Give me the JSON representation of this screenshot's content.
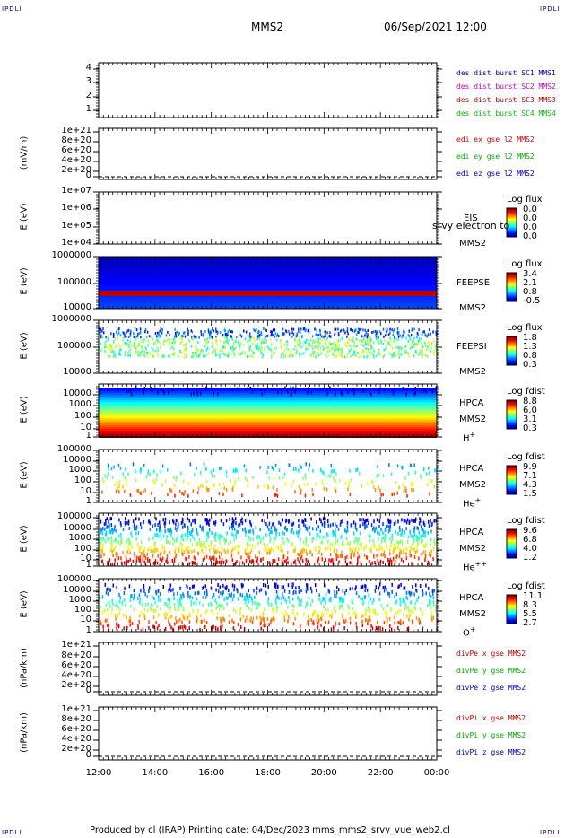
{
  "header": {
    "corner_left_top": "IPDLI",
    "corner_right_top": "IPDLI",
    "corner_left_bottom": "IPDLI",
    "corner_right_bottom": "IPDLI",
    "spacecraft": "MMS2",
    "datetime": "06/Sep/2021 12:00"
  },
  "footer": {
    "text": "Produced by cl (IRAP)   Printing date: 04/Dec/2023   mms_mms2_srvy_vue_web2.cl"
  },
  "colors": {
    "mms1": "#0000c0",
    "mms2": "#d000d0",
    "mms3": "#c00000",
    "mms4": "#00c000",
    "x_comp": "#d00000",
    "y_comp": "#00b000",
    "z_comp": "#0000c0"
  },
  "chart_data": [
    {
      "type": "line",
      "panel": "burst",
      "yticks": [
        "4",
        "3",
        "2",
        "1"
      ],
      "legend": [
        {
          "text": "des dist burst SC1 MMS1",
          "color": "#0000c0"
        },
        {
          "text": "des dist burst SC2 MMS2",
          "color": "#d000d0"
        },
        {
          "text": "des dist burst SC3 MMS3",
          "color": "#c00000"
        },
        {
          "text": "des dist burst SC4 MMS4",
          "color": "#00c000"
        }
      ]
    },
    {
      "type": "line",
      "panel": "edi",
      "ylabel": "(mV/m)",
      "yticks": [
        "1e+21",
        "8e+20",
        "6e+20",
        "4e+20",
        "2e+20",
        "0"
      ],
      "legend": [
        {
          "text": "edi ex gse l2 MMS2",
          "color": "#d00000"
        },
        {
          "text": "edi ey gse l2 MMS2",
          "color": "#00b000"
        },
        {
          "text": "edi ez gse l2 MMS2",
          "color": "#0000c0"
        }
      ]
    },
    {
      "type": "heatmap",
      "panel": "eis",
      "ylabel": "E (eV)",
      "yticks": [
        "1e+07",
        "1e+06",
        "1e+05",
        "1e+04"
      ],
      "instrument": "EIS",
      "overlay": "srvy electron to",
      "sc": "MMS2",
      "cb_title": "Log flux",
      "cb_ticks": [
        "0.0",
        "0.0",
        "0.0",
        "0.0"
      ]
    },
    {
      "type": "heatmap",
      "panel": "feeps_e",
      "ylabel": "E (eV)",
      "yticks": [
        "1000000",
        "100000",
        "10000"
      ],
      "instrument": "FEEPSE",
      "sc": "MMS2",
      "cb_title": "Log flux",
      "cb_ticks": [
        "3.4",
        "2.1",
        "0.8",
        "-0.5"
      ]
    },
    {
      "type": "heatmap",
      "panel": "feeps_i",
      "ylabel": "E (eV)",
      "yticks": [
        "1000000",
        "100000",
        "10000"
      ],
      "instrument": "FEEPSI",
      "sc": "MMS2",
      "cb_title": "Log flux",
      "cb_ticks": [
        "1.8",
        "1.3",
        "0.8",
        "0.3"
      ]
    },
    {
      "type": "heatmap",
      "panel": "hpca_h",
      "ylabel": "E (eV)",
      "yticks": [
        "10000",
        "1000",
        "100",
        "10",
        "1"
      ],
      "instrument": "HPCA",
      "sc": "MMS2",
      "species": "H",
      "species_sup": "+",
      "cb_title": "Log fdist",
      "cb_ticks": [
        "8.8",
        "6.0",
        "3.1",
        "0.3"
      ]
    },
    {
      "type": "heatmap",
      "panel": "hpca_he",
      "ylabel": "E (eV)",
      "yticks": [
        "100000",
        "10000",
        "1000",
        "100",
        "10",
        "1"
      ],
      "instrument": "HPCA",
      "sc": "MMS2",
      "species": "He",
      "species_sup": "+",
      "cb_title": "Log fdist",
      "cb_ticks": [
        "9.9",
        "7.1",
        "4.3",
        "1.5"
      ]
    },
    {
      "type": "heatmap",
      "panel": "hpca_hepp",
      "ylabel": "E (eV)",
      "yticks": [
        "100000",
        "10000",
        "1000",
        "100",
        "10",
        "1"
      ],
      "instrument": "HPCA",
      "sc": "MMS2",
      "species": "He",
      "species_sup": "++",
      "cb_title": "Log fdist",
      "cb_ticks": [
        "9.6",
        "6.8",
        "4.0",
        "1.2"
      ]
    },
    {
      "type": "heatmap",
      "panel": "hpca_o",
      "ylabel": "E (eV)",
      "yticks": [
        "100000",
        "10000",
        "1000",
        "100",
        "10",
        "1"
      ],
      "instrument": "HPCA",
      "sc": "MMS2",
      "species": "O",
      "species_sup": "+",
      "cb_title": "Log fdist",
      "cb_ticks": [
        "11.1",
        "8.3",
        "5.5",
        "2.7"
      ]
    },
    {
      "type": "line",
      "panel": "divpe",
      "ylabel": "(nPa/km)",
      "yticks": [
        "1e+21",
        "8e+20",
        "6e+20",
        "4e+20",
        "2e+20",
        "0"
      ],
      "legend": [
        {
          "text": "divPe x gse MMS2",
          "color": "#d00000"
        },
        {
          "text": "divPe y gse MMS2",
          "color": "#00b000"
        },
        {
          "text": "divPe z gse MMS2",
          "color": "#0000c0"
        }
      ]
    },
    {
      "type": "line",
      "panel": "divpi",
      "ylabel": "(nPa/km)",
      "yticks": [
        "1e+21",
        "8e+20",
        "6e+20",
        "4e+20",
        "2e+20",
        "0"
      ],
      "legend": [
        {
          "text": "divPi x gse MMS2",
          "color": "#d00000"
        },
        {
          "text": "divPi y gse MMS2",
          "color": "#00b000"
        },
        {
          "text": "divPi z gse MMS2",
          "color": "#0000c0"
        }
      ]
    }
  ],
  "x_axis": {
    "ticks": [
      "12:00",
      "14:00",
      "16:00",
      "18:00",
      "20:00",
      "22:00",
      "00:00"
    ]
  }
}
